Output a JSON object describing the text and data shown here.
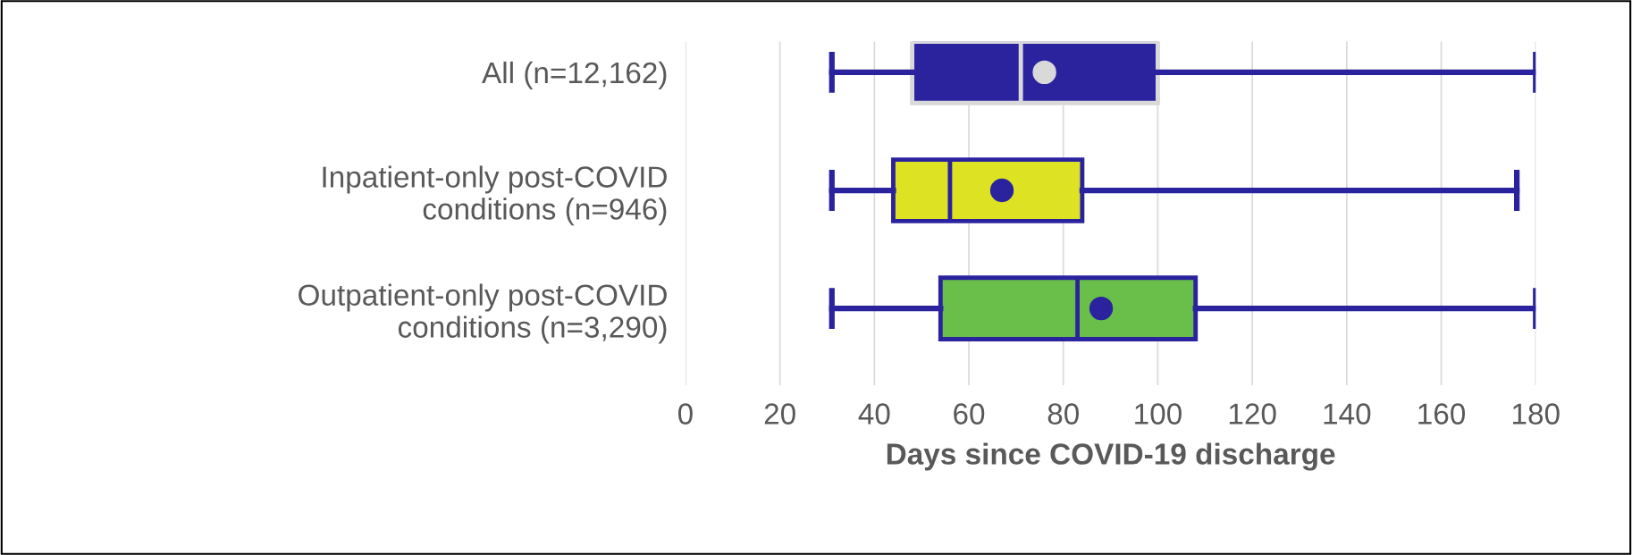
{
  "chart_data": {
    "type": "box",
    "orientation": "horizontal",
    "categories": [
      "All (n=12,162)",
      "Inpatient-only post-COVID\nconditions (n=946)",
      "Outpatient-only post-COVID\nconditions (n=3,290)"
    ],
    "colors": [
      "#2b239e",
      "#dde322",
      "#6abf4b"
    ],
    "boxes": [
      {
        "low": 31,
        "q1": 48,
        "median": 71,
        "q3": 100,
        "high": 180,
        "mean": 76
      },
      {
        "low": 31,
        "q1": 44,
        "median": 56,
        "q3": 84,
        "high": 176,
        "mean": 67
      },
      {
        "low": 31,
        "q1": 54,
        "median": 83,
        "q3": 108,
        "high": 180,
        "mean": 88
      }
    ],
    "xlabel": "Days since COVID-19 discharge",
    "xlim": [
      0,
      180
    ],
    "xticks": [
      0,
      20,
      40,
      60,
      80,
      100,
      120,
      140,
      160,
      180
    ],
    "grid": "x"
  }
}
